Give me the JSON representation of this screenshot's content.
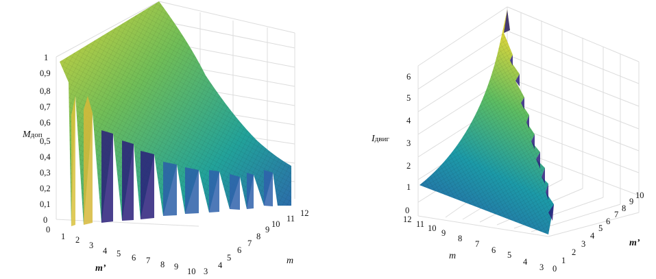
{
  "chart_data": [
    {
      "type": "surface",
      "zlabel_main": "M",
      "zlabel_sub": "доп",
      "xlabel": "m’",
      "ylabel": "m",
      "x_ticks": [
        "0",
        "1",
        "2",
        "3",
        "4",
        "5",
        "6",
        "7",
        "8",
        "9",
        "10"
      ],
      "y_ticks": [
        "3",
        "4",
        "5",
        "6",
        "7",
        "8",
        "9",
        "10",
        "11",
        "12"
      ],
      "z_ticks": [
        "0",
        "0,1",
        "0,2",
        "0,3",
        "0,4",
        "0,5",
        "0,6",
        "0,7",
        "0,8",
        "0,9",
        "1"
      ],
      "xlim": [
        0,
        10
      ],
      "ylim": [
        3,
        12
      ],
      "zlim": [
        0,
        1
      ],
      "grid": true,
      "colormap": [
        "#3e1a8a",
        "#2c5aa8",
        "#1c8fb5",
        "#2fb58a",
        "#8cc24e",
        "#e0d63a"
      ],
      "description_values": {
        "back_edge_at_m_3": 1.0,
        "at_m_12_min": 0.35,
        "notches_at_m_prime": [
          1,
          2,
          3,
          4,
          5,
          6,
          7,
          8,
          9,
          10
        ]
      }
    },
    {
      "type": "surface",
      "zlabel_main": "I",
      "zlabel_sub": "двиг",
      "xlabel": "m’",
      "ylabel": "m",
      "x_ticks": [
        "0",
        "1",
        "2",
        "3",
        "4",
        "5",
        "6",
        "7",
        "8",
        "9",
        "10"
      ],
      "y_ticks": [
        "3",
        "4",
        "5",
        "6",
        "7",
        "8",
        "9",
        "10",
        "11",
        "12"
      ],
      "z_ticks": [
        "0",
        "1",
        "2",
        "3",
        "4",
        "5",
        "6"
      ],
      "xlim": [
        0,
        10
      ],
      "ylim": [
        3,
        12
      ],
      "zlim": [
        0,
        6.5
      ],
      "grid": true,
      "colormap": [
        "#3e1a8a",
        "#2c5aa8",
        "#1c8fb5",
        "#2fb58a",
        "#8cc24e",
        "#e0d63a"
      ],
      "description_values": {
        "floor_value": 0.0,
        "peak_value": 6.5,
        "sawtooth_count": 10
      }
    }
  ]
}
